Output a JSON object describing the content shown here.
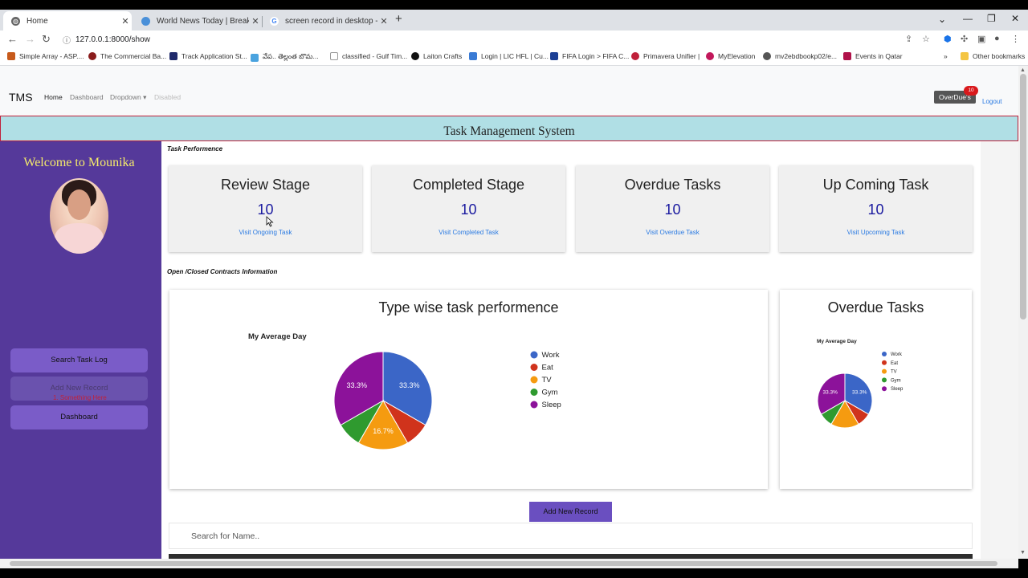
{
  "browser": {
    "tabs": [
      {
        "title": "Home",
        "active": true
      },
      {
        "title": "World News Today | Breaking Ne",
        "active": false
      },
      {
        "title": "screen record in desktop - Goog",
        "active": false
      }
    ],
    "new_tab": "+",
    "url": "127.0.0.1:8000/show",
    "bookmarks": [
      "Simple Array - ASP....",
      "The Commercial Ba...",
      "Track Application St...",
      "వేప.. తెల్లంత బొమ...",
      "classified - Gulf Tim...",
      "Laiton Crafts",
      "Login | LIC HFL | Cu...",
      "FIFA Login > FIFA C...",
      "Primavera Unifier |",
      "MyElevation",
      "mv2ebdbookp02/e...",
      "Events in Qatar"
    ],
    "more_bookmarks": "»",
    "other_bookmarks": "Other bookmarks"
  },
  "navbar": {
    "brand": "TMS",
    "links": [
      "Home",
      "Dashboard",
      "Dropdown ▾",
      "Disabled"
    ],
    "overdue_label": "OverDue's",
    "overdue_count": "10",
    "logout": "Logout"
  },
  "title": "Task Management System",
  "sidebar": {
    "welcome": "Welcome to Mounika",
    "buttons": [
      "Search Task Log",
      "Add New Record",
      "Dashboard"
    ],
    "red_text": "1. Something Here"
  },
  "sections": {
    "performance": "Task Performence",
    "contracts": "Open /Closed Contracts Information"
  },
  "cards": [
    {
      "title": "Review Stage",
      "value": "10",
      "link": "Visit Ongoing Task"
    },
    {
      "title": "Completed Stage",
      "value": "10",
      "link": "Visit Completed Task"
    },
    {
      "title": "Overdue Tasks",
      "value": "10",
      "link": "Visit Overdue Task"
    },
    {
      "title": "Up Coming Task",
      "value": "10",
      "link": "Visit Upcoming Task"
    }
  ],
  "colors": {
    "sidebar": "#55399a",
    "accent": "#6a4fc0",
    "title_band": "#b0dfe5",
    "work": "#3b66c7",
    "eat": "#d0331c",
    "tv": "#f59b10",
    "gym": "#2f9a2f",
    "sleep": "#8c129a"
  },
  "chart_data": [
    {
      "type": "pie",
      "panel_title": "Type wise task performence",
      "title": "My Average Day",
      "categories": [
        "Work",
        "Eat",
        "TV",
        "Gym",
        "Sleep"
      ],
      "values": [
        33.3,
        8.3,
        16.7,
        8.3,
        33.3
      ],
      "slice_labels": [
        "33.3%",
        "",
        "16.7%",
        "",
        "33.3%"
      ],
      "legend": "right"
    },
    {
      "type": "pie",
      "panel_title": "Overdue Tasks",
      "title": "My Average Day",
      "categories": [
        "Work",
        "Eat",
        "TV",
        "Gym",
        "Sleep"
      ],
      "values": [
        33.3,
        8.3,
        16.7,
        8.3,
        33.3
      ],
      "slice_labels": [
        "33.3%",
        "",
        "",
        "",
        "33.3%"
      ],
      "legend": "right"
    }
  ],
  "actions": {
    "add_new_record": "Add New Record",
    "search_placeholder": "Search for Name.."
  }
}
